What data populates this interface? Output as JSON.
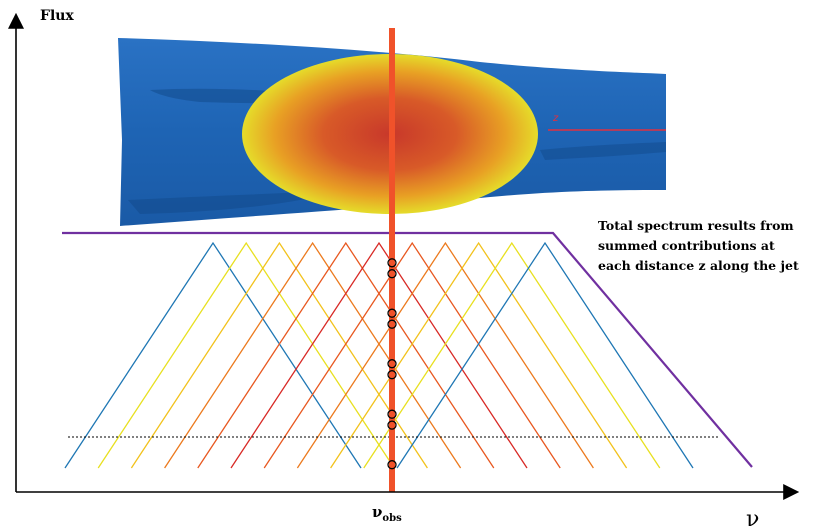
{
  "axes": {
    "y_label": "Flux",
    "x_label": "ν"
  },
  "annotation": {
    "lines": [
      "Total spectrum results from",
      "summed contributions at",
      "each distance z along the jet"
    ]
  },
  "nu_obs": {
    "base": "ν",
    "subscript": "obs"
  },
  "jet_axis_label": "z",
  "colors": {
    "jet_blue": "#1e64b4",
    "jet_dark": "#124a8c",
    "blob_center": "#c8382a",
    "blob_edge": "#e5dc2a",
    "obs_line": "#f0522a",
    "total_spectrum": "#7030a0",
    "z_arrow": "#e03040"
  },
  "component_colors": [
    "#1f77b4",
    "#e8e020",
    "#f2c21c",
    "#f0a020",
    "#ec7a1e",
    "#e85820",
    "#e23a22",
    "#d82a26"
  ]
}
